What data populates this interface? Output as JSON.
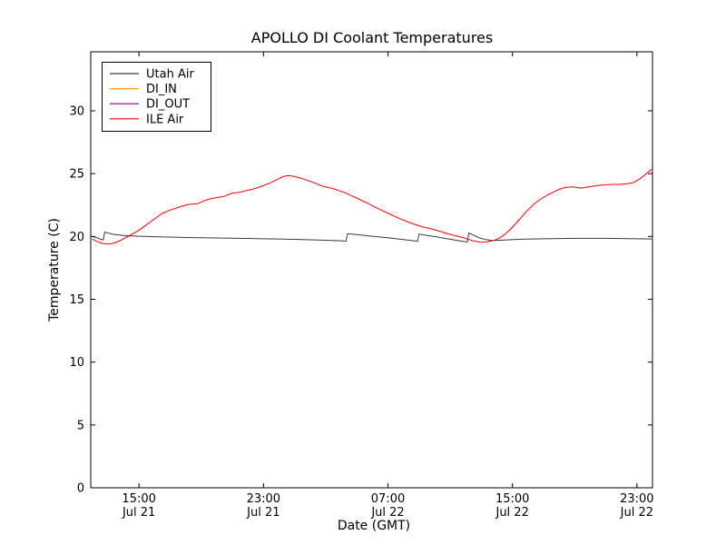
{
  "figure": {
    "background": "#ffffff",
    "spine_color": "#000000"
  },
  "chart_data": {
    "type": "line",
    "title": "APOLLO DI Coolant Temperatures",
    "xlabel": "Date (GMT)",
    "ylabel": "Temperature (C)",
    "x_unit": "hours since Jul 21 12:00 GMT",
    "xlim": [
      -0.1,
      36.0
    ],
    "ylim": [
      0,
      34.7
    ],
    "grid": false,
    "legend_position": "upper left",
    "x_ticks": [
      {
        "t": 3,
        "time": "15:00",
        "date": "Jul 21"
      },
      {
        "t": 11,
        "time": "23:00",
        "date": "Jul 21"
      },
      {
        "t": 19,
        "time": "07:00",
        "date": "Jul 22"
      },
      {
        "t": 27,
        "time": "15:00",
        "date": "Jul 22"
      },
      {
        "t": 35,
        "time": "23:00",
        "date": "Jul 22"
      }
    ],
    "y_ticks": [
      0,
      5,
      10,
      15,
      20,
      25,
      30
    ],
    "series": [
      {
        "name": "Utah Air",
        "color": "#3a3a3a",
        "points": [
          [
            0,
            20.0
          ],
          [
            0.3,
            19.9
          ],
          [
            0.55,
            19.78
          ],
          [
            0.7,
            19.72
          ],
          [
            0.8,
            20.35
          ],
          [
            1.3,
            20.18
          ],
          [
            2,
            20.08
          ],
          [
            3,
            20.02
          ],
          [
            4,
            19.98
          ],
          [
            5,
            19.95
          ],
          [
            6,
            19.92
          ],
          [
            7,
            19.9
          ],
          [
            8,
            19.88
          ],
          [
            9,
            19.86
          ],
          [
            10,
            19.84
          ],
          [
            11,
            19.82
          ],
          [
            12,
            19.8
          ],
          [
            13,
            19.77
          ],
          [
            14,
            19.74
          ],
          [
            15,
            19.7
          ],
          [
            16,
            19.65
          ],
          [
            16.3,
            19.62
          ],
          [
            16.4,
            20.22
          ],
          [
            17,
            20.15
          ],
          [
            18,
            20.02
          ],
          [
            19,
            19.9
          ],
          [
            19.8,
            19.78
          ],
          [
            20.5,
            19.68
          ],
          [
            20.9,
            19.62
          ],
          [
            21.0,
            20.2
          ],
          [
            21.5,
            20.08
          ],
          [
            22.2,
            19.95
          ],
          [
            22.9,
            19.8
          ],
          [
            23.6,
            19.65
          ],
          [
            24.1,
            19.56
          ],
          [
            24.2,
            20.28
          ],
          [
            24.5,
            20.1
          ],
          [
            24.9,
            19.88
          ],
          [
            25.3,
            19.75
          ],
          [
            25.7,
            19.68
          ],
          [
            26.5,
            19.72
          ],
          [
            27.5,
            19.78
          ],
          [
            29,
            19.82
          ],
          [
            31,
            19.85
          ],
          [
            33,
            19.85
          ],
          [
            34.5,
            19.83
          ],
          [
            35.95,
            19.8
          ]
        ]
      },
      {
        "name": "DI_IN",
        "color": "#ffa500",
        "points": []
      },
      {
        "name": "DI_OUT",
        "color": "#800080",
        "points": []
      },
      {
        "name": "ILE Air",
        "color": "#ff0000",
        "points": [
          [
            0,
            19.8
          ],
          [
            0.3,
            19.6
          ],
          [
            0.6,
            19.47
          ],
          [
            0.9,
            19.4
          ],
          [
            1.2,
            19.42
          ],
          [
            1.5,
            19.52
          ],
          [
            1.8,
            19.68
          ],
          [
            2.1,
            19.88
          ],
          [
            2.5,
            20.15
          ],
          [
            3,
            20.5
          ],
          [
            3.5,
            20.95
          ],
          [
            4,
            21.4
          ],
          [
            4.5,
            21.85
          ],
          [
            5,
            22.1
          ],
          [
            5.5,
            22.3
          ],
          [
            6,
            22.5
          ],
          [
            6.4,
            22.58
          ],
          [
            6.8,
            22.62
          ],
          [
            7.2,
            22.85
          ],
          [
            7.6,
            23.0
          ],
          [
            8,
            23.1
          ],
          [
            8.5,
            23.2
          ],
          [
            9,
            23.45
          ],
          [
            9.4,
            23.5
          ],
          [
            9.9,
            23.65
          ],
          [
            10.4,
            23.8
          ],
          [
            10.9,
            24.0
          ],
          [
            11.4,
            24.25
          ],
          [
            11.9,
            24.55
          ],
          [
            12.3,
            24.78
          ],
          [
            12.6,
            24.85
          ],
          [
            13,
            24.78
          ],
          [
            13.5,
            24.6
          ],
          [
            14.1,
            24.35
          ],
          [
            14.8,
            24.0
          ],
          [
            15.5,
            23.8
          ],
          [
            16.2,
            23.5
          ],
          [
            16.9,
            23.1
          ],
          [
            17.6,
            22.7
          ],
          [
            18.3,
            22.25
          ],
          [
            19,
            21.85
          ],
          [
            19.7,
            21.45
          ],
          [
            20.4,
            21.1
          ],
          [
            21.1,
            20.8
          ],
          [
            21.8,
            20.6
          ],
          [
            22.5,
            20.35
          ],
          [
            23.2,
            20.1
          ],
          [
            23.9,
            19.88
          ],
          [
            24.4,
            19.68
          ],
          [
            24.9,
            19.55
          ],
          [
            25.4,
            19.58
          ],
          [
            25.9,
            19.72
          ],
          [
            26.4,
            20.05
          ],
          [
            26.9,
            20.6
          ],
          [
            27.4,
            21.3
          ],
          [
            27.9,
            22.0
          ],
          [
            28.4,
            22.6
          ],
          [
            28.9,
            23.05
          ],
          [
            29.4,
            23.4
          ],
          [
            29.9,
            23.7
          ],
          [
            30.4,
            23.9
          ],
          [
            30.9,
            23.95
          ],
          [
            31.4,
            23.85
          ],
          [
            31.9,
            23.95
          ],
          [
            32.4,
            24.05
          ],
          [
            32.9,
            24.1
          ],
          [
            33.4,
            24.15
          ],
          [
            33.9,
            24.15
          ],
          [
            34.4,
            24.2
          ],
          [
            34.8,
            24.3
          ],
          [
            35.2,
            24.6
          ],
          [
            35.6,
            25.0
          ],
          [
            35.95,
            25.35
          ]
        ]
      }
    ]
  }
}
